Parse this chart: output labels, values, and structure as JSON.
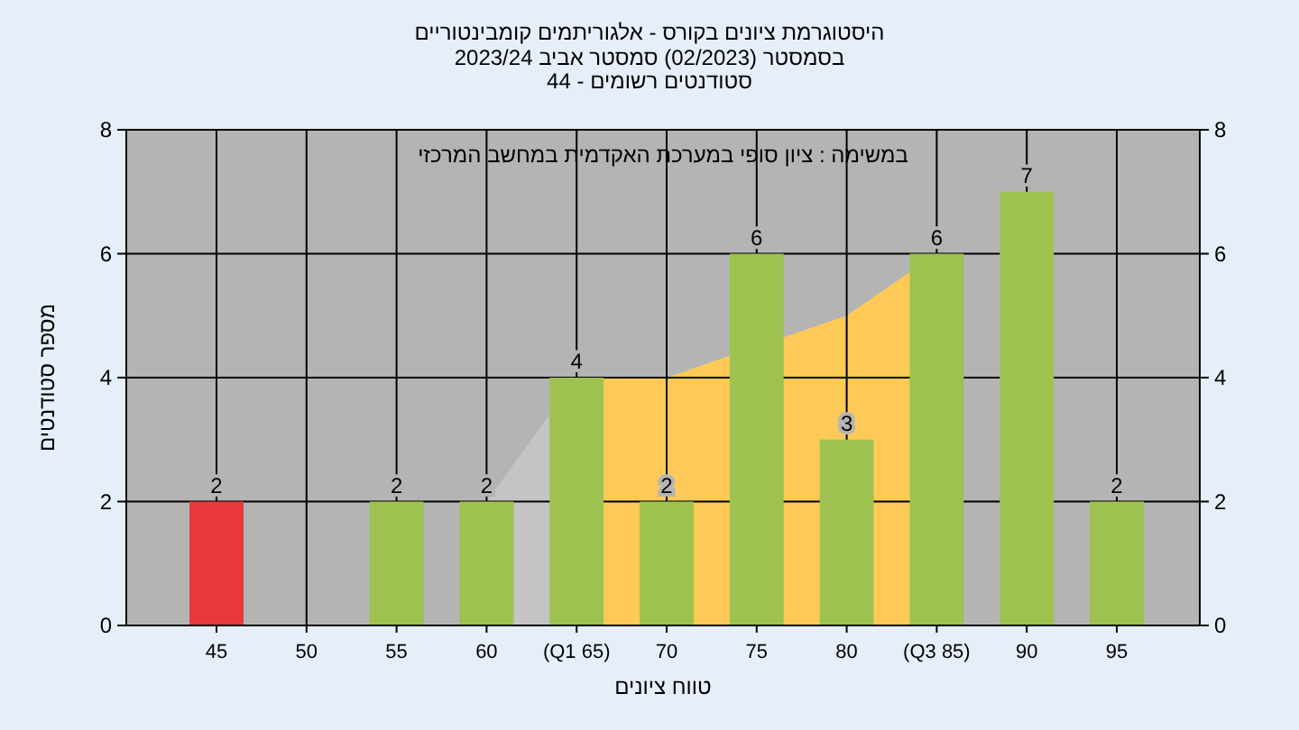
{
  "chart_data": {
    "type": "bar",
    "title": "היסטוגרמת ציונים בקורס - אלגוריתמים קומבינטוריים",
    "subtitle": "בסמסטר  (02/2023)  סמסטר אביב 2023/24\nסטודנטים רשומים - 44",
    "xlabel": "טווח ציונים",
    "ylabel": "מספר סטודנטים",
    "annotations": [
      "במשימה : ציון סופי במערכת האקדמית במחשב המרכזי"
    ],
    "categories": [
      "45",
      "50",
      "55",
      "60",
      "(Q1 65)",
      "70",
      "75",
      "80",
      "(Q3 85)",
      "90",
      "95"
    ],
    "series": [
      {
        "type": "area",
        "color": "#c4c4c4",
        "values": [
          null,
          null,
          null,
          2,
          4,
          4,
          null,
          5,
          6,
          null,
          null
        ]
      },
      {
        "type": "area",
        "color": "#fec957",
        "values": [
          null,
          null,
          null,
          null,
          4,
          4,
          null,
          5,
          6,
          null,
          null
        ]
      },
      {
        "colors": [
          "#e8383c",
          "#9dc24f",
          "#9dc24f",
          "#9dc24f",
          "#9dc24f",
          "#9dc24f",
          "#9dc24f",
          "#9dc24f",
          "#9dc24f",
          "#9dc24f",
          "#9dc24f"
        ],
        "values": [
          2,
          0,
          2,
          2,
          4,
          2,
          6,
          3,
          6,
          7,
          2
        ],
        "value_labels": [
          "2",
          null,
          "2",
          "2",
          "4",
          "2",
          "6",
          "3",
          "6",
          "7",
          "2"
        ]
      }
    ],
    "ylim": [
      0,
      8
    ],
    "yticks": [
      0,
      2,
      4,
      6,
      8
    ],
    "y2lim": [
      0,
      8
    ],
    "y2ticks": [
      0,
      2,
      4,
      6,
      8
    ],
    "grid": true
  }
}
